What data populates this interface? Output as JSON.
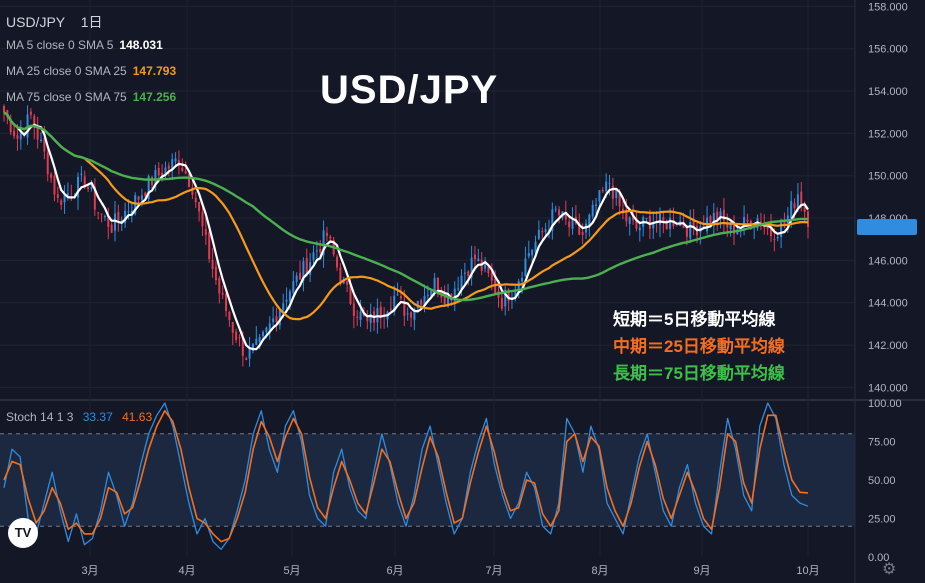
{
  "header": {
    "symbol": "USD/JPY",
    "interval": "1日",
    "ma_lines": [
      {
        "label": "MA 5 close 0 SMA 5",
        "value": "148.031",
        "color": "#ffffff"
      },
      {
        "label": "MA 25 close 0 SMA 25",
        "value": "147.793",
        "color": "#f59a1b"
      },
      {
        "label": "MA 75 close 0 SMA 75",
        "value": "147.256",
        "color": "#4caf50"
      }
    ]
  },
  "overlay_title": "USD/JPY",
  "annotations": [
    {
      "text": "短期＝5日移動平均線",
      "color": "#ffffff"
    },
    {
      "text": "中期＝25日移動平均線",
      "color": "#f26f21"
    },
    {
      "text": "長期＝75日移動平均線",
      "color": "#3fbf4a"
    }
  ],
  "stoch_legend": {
    "label": "Stoch 14 1 3",
    "k": "33.37",
    "d": "41.63",
    "k_color": "#2f8cde",
    "d_color": "#f26f21"
  },
  "logo_text": "TV",
  "gear_icon": "gear-icon",
  "chart_data": [
    {
      "type": "candlestick",
      "title": "USD/JPY",
      "ylim": [
        139.5,
        158.3
      ],
      "y_ticks": [
        "140.000",
        "142.000",
        "144.000",
        "146.000",
        "148.000",
        "150.000",
        "152.000",
        "154.000",
        "156.000",
        "158.000"
      ],
      "x_ticks": [
        "3月",
        "4月",
        "5月",
        "6月",
        "7月",
        "8月",
        "9月",
        "10月"
      ],
      "up_color": "#2f8cde",
      "down_color": "#e23b4f",
      "close_anchors": [
        [
          0,
          153.0
        ],
        [
          4,
          151.8
        ],
        [
          8,
          152.8
        ],
        [
          12,
          151.0
        ],
        [
          16,
          148.8
        ],
        [
          20,
          149.3
        ],
        [
          24,
          149.8
        ],
        [
          28,
          148.3
        ],
        [
          32,
          147.6
        ],
        [
          36,
          148.3
        ],
        [
          40,
          149.0
        ],
        [
          44,
          149.8
        ],
        [
          48,
          150.3
        ],
        [
          52,
          150.8
        ],
        [
          56,
          149.5
        ],
        [
          60,
          146.8
        ],
        [
          64,
          144.5
        ],
        [
          68,
          142.8
        ],
        [
          72,
          141.5
        ],
        [
          76,
          142.0
        ],
        [
          80,
          143.2
        ],
        [
          84,
          144.4
        ],
        [
          88,
          145.3
        ],
        [
          92,
          146.3
        ],
        [
          96,
          147.2
        ],
        [
          100,
          145.2
        ],
        [
          104,
          143.8
        ],
        [
          108,
          143.0
        ],
        [
          112,
          143.6
        ],
        [
          116,
          144.3
        ],
        [
          120,
          143.5
        ],
        [
          124,
          144.3
        ],
        [
          128,
          144.9
        ],
        [
          132,
          144.2
        ],
        [
          136,
          145.3
        ],
        [
          140,
          146.1
        ],
        [
          144,
          145.2
        ],
        [
          148,
          144.1
        ],
        [
          152,
          144.8
        ],
        [
          156,
          146.4
        ],
        [
          160,
          147.3
        ],
        [
          164,
          148.3
        ],
        [
          168,
          147.6
        ],
        [
          172,
          147.2
        ],
        [
          176,
          148.6
        ],
        [
          180,
          149.7
        ],
        [
          184,
          148.1
        ],
        [
          188,
          147.5
        ],
        [
          192,
          147.9
        ],
        [
          196,
          147.7
        ],
        [
          200,
          148.0
        ],
        [
          204,
          147.4
        ],
        [
          208,
          147.8
        ],
        [
          212,
          148.1
        ],
        [
          216,
          147.5
        ],
        [
          220,
          147.7
        ],
        [
          224,
          148.0
        ],
        [
          228,
          147.3
        ],
        [
          232,
          147.7
        ],
        [
          236,
          149.2
        ],
        [
          239,
          148.0
        ]
      ],
      "series": [
        {
          "name": "MA 5 close 0 SMA 5",
          "color": "#ffffff",
          "last": 148.031
        },
        {
          "name": "MA 25 close 0 SMA 25",
          "color": "#f59a1b",
          "last": 147.793
        },
        {
          "name": "MA 75 close 0 SMA 75",
          "color": "#4caf50",
          "last": 147.256
        }
      ]
    },
    {
      "type": "line",
      "title": "Stoch 14 1 3",
      "ylim": [
        0,
        100
      ],
      "y_ticks": [
        "0.00",
        "25.00",
        "50.00",
        "75.00",
        "100.00"
      ],
      "bands": [
        20,
        80
      ],
      "series": [
        {
          "name": "%K",
          "color": "#2f8cde",
          "last": 33.37,
          "values": [
            45,
            70,
            65,
            25,
            15,
            35,
            55,
            30,
            10,
            28,
            8,
            12,
            30,
            55,
            40,
            20,
            35,
            60,
            80,
            92,
            100,
            85,
            60,
            35,
            15,
            25,
            10,
            5,
            12,
            30,
            50,
            80,
            95,
            70,
            55,
            85,
            95,
            75,
            40,
            25,
            20,
            55,
            70,
            45,
            30,
            25,
            55,
            80,
            60,
            35,
            20,
            40,
            70,
            85,
            60,
            35,
            15,
            25,
            55,
            75,
            90,
            60,
            40,
            25,
            35,
            55,
            45,
            20,
            15,
            35,
            90,
            80,
            55,
            85,
            70,
            35,
            25,
            15,
            40,
            65,
            80,
            55,
            30,
            20,
            45,
            60,
            35,
            20,
            15,
            55,
            90,
            70,
            40,
            30,
            85,
            100,
            90,
            60,
            40,
            35,
            33
          ]
        },
        {
          "name": "%D",
          "color": "#f26f21",
          "last": 41.63,
          "values": [
            50,
            62,
            60,
            38,
            22,
            30,
            45,
            35,
            18,
            22,
            15,
            15,
            25,
            45,
            42,
            28,
            32,
            50,
            70,
            85,
            95,
            88,
            70,
            45,
            25,
            22,
            15,
            10,
            12,
            25,
            42,
            70,
            88,
            78,
            62,
            78,
            90,
            80,
            52,
            32,
            25,
            45,
            62,
            50,
            35,
            28,
            48,
            70,
            62,
            42,
            25,
            35,
            58,
            78,
            65,
            42,
            22,
            25,
            48,
            68,
            85,
            68,
            45,
            30,
            32,
            50,
            48,
            28,
            20,
            30,
            75,
            80,
            62,
            78,
            72,
            45,
            30,
            20,
            35,
            58,
            75,
            60,
            38,
            25,
            40,
            55,
            42,
            25,
            18,
            45,
            80,
            75,
            48,
            35,
            70,
            92,
            92,
            70,
            50,
            42,
            41.63
          ]
        }
      ]
    }
  ]
}
